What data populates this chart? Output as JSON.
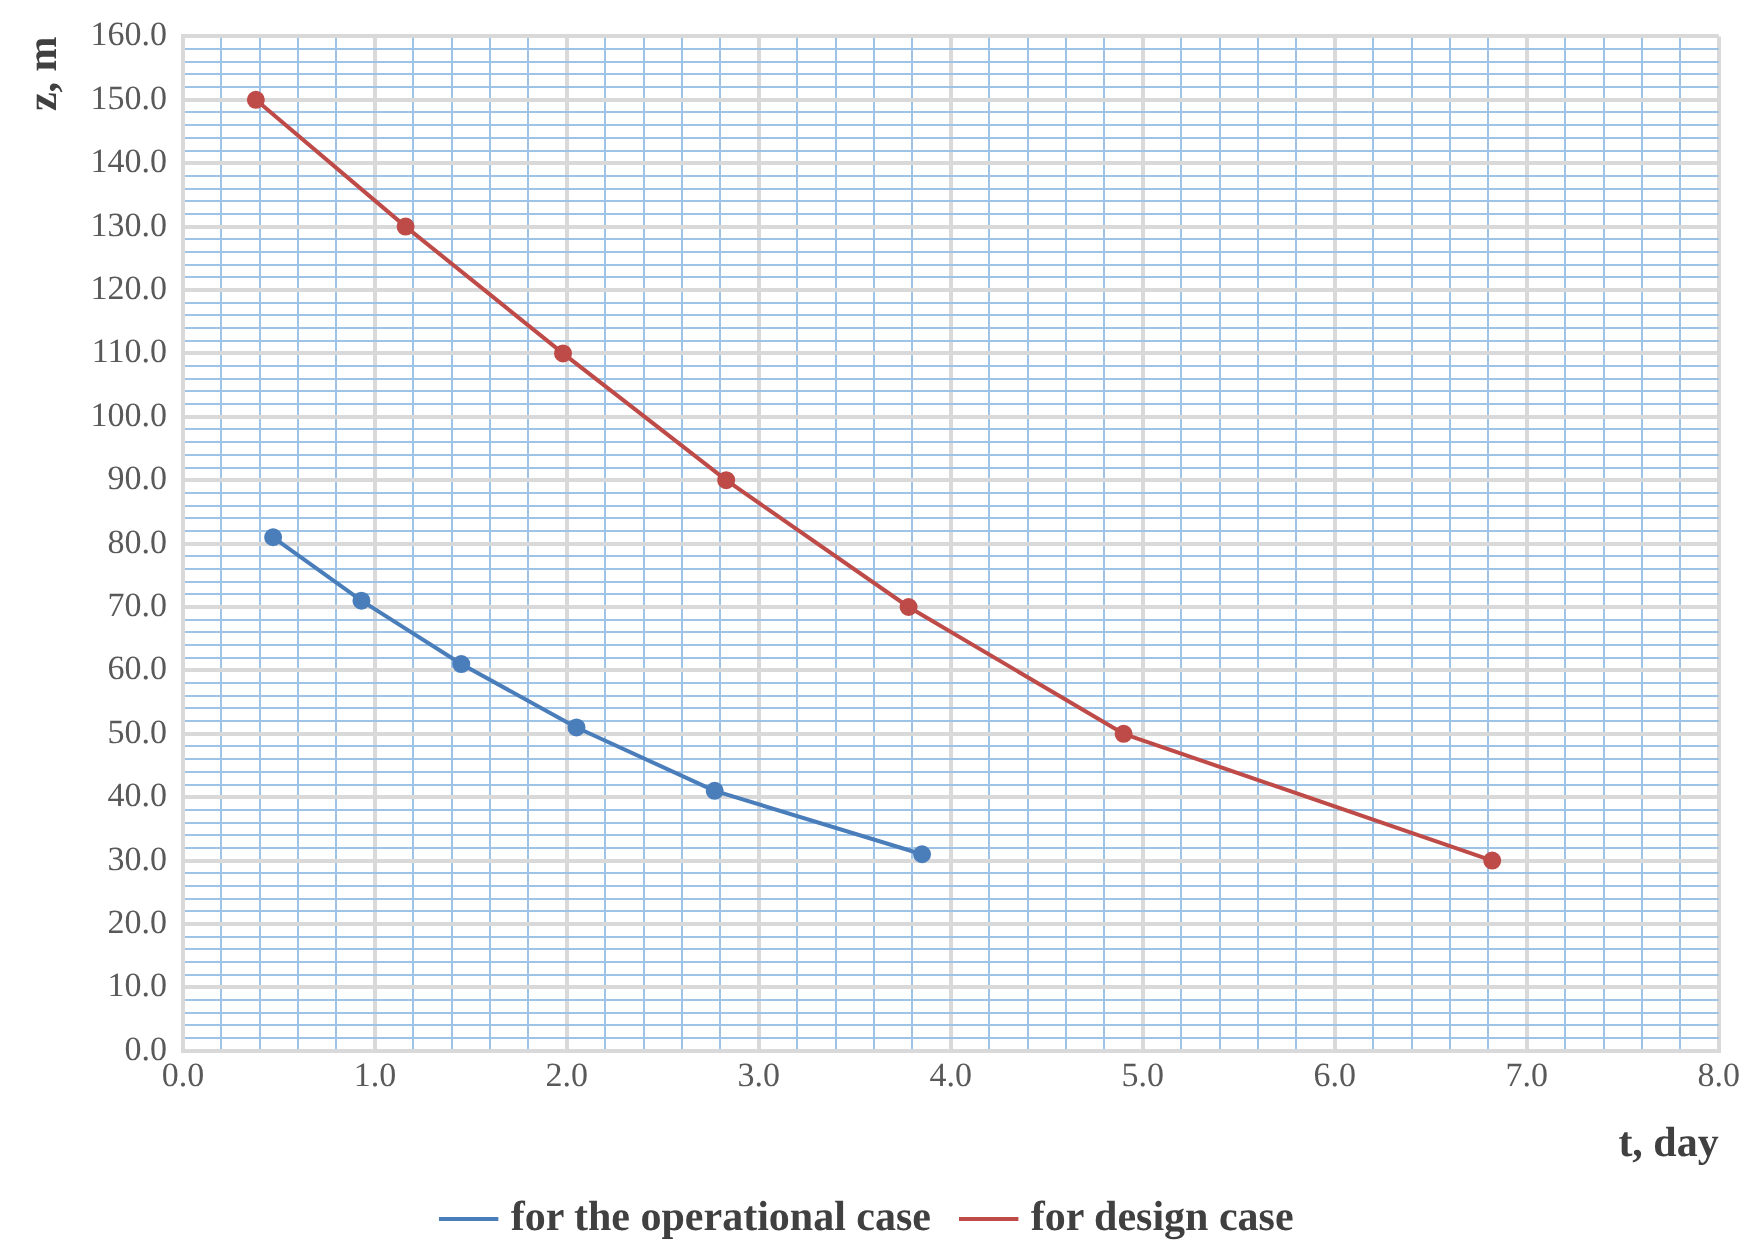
{
  "chart_data": {
    "type": "line",
    "xlabel": "t, day",
    "ylabel": "z, m",
    "xlim": [
      0,
      8
    ],
    "xticks": [
      {
        "value": 0,
        "label": "0.0"
      },
      {
        "value": 0.2,
        "label": null
      },
      {
        "value": 0.4,
        "label": null
      },
      {
        "value": 0.6,
        "label": null
      },
      {
        "value": 0.8,
        "label": null
      },
      {
        "value": 1,
        "label": "1.0"
      },
      {
        "value": 1.2,
        "label": null
      },
      {
        "value": 1.4,
        "label": null
      },
      {
        "value": 1.6,
        "label": null
      },
      {
        "value": 1.8,
        "label": null
      },
      {
        "value": 2,
        "label": "2.0"
      },
      {
        "value": 2.2,
        "label": null
      },
      {
        "value": 2.4,
        "label": null
      },
      {
        "value": 2.6,
        "label": null
      },
      {
        "value": 2.8,
        "label": null
      },
      {
        "value": 3,
        "label": "3.0"
      },
      {
        "value": 3.2,
        "label": null
      },
      {
        "value": 3.4,
        "label": null
      },
      {
        "value": 3.6,
        "label": null
      },
      {
        "value": 3.8,
        "label": null
      },
      {
        "value": 4,
        "label": "4.0"
      },
      {
        "value": 4.2,
        "label": null
      },
      {
        "value": 4.4,
        "label": null
      },
      {
        "value": 4.6,
        "label": null
      },
      {
        "value": 4.8,
        "label": null
      },
      {
        "value": 5,
        "label": "5.0"
      },
      {
        "value": 5.2,
        "label": null
      },
      {
        "value": 5.4,
        "label": null
      },
      {
        "value": 5.6,
        "label": null
      },
      {
        "value": 5.8,
        "label": null
      },
      {
        "value": 6,
        "label": "6.0"
      },
      {
        "value": 6.2,
        "label": null
      },
      {
        "value": 6.4,
        "label": null
      },
      {
        "value": 6.6,
        "label": null
      },
      {
        "value": 6.8,
        "label": null
      },
      {
        "value": 7,
        "label": "7.0"
      },
      {
        "value": 7.2,
        "label": null
      },
      {
        "value": 7.4,
        "label": null
      },
      {
        "value": 7.6,
        "label": null
      },
      {
        "value": 7.8,
        "label": null
      },
      {
        "value": 8,
        "label": "8.0"
      }
    ],
    "ylim": [
      0,
      160
    ],
    "yticks": [
      {
        "value": 0,
        "label": "0.0"
      },
      {
        "value": 2,
        "label": null
      },
      {
        "value": 4,
        "label": null
      },
      {
        "value": 6,
        "label": null
      },
      {
        "value": 8,
        "label": null
      },
      {
        "value": 10,
        "label": "10.0"
      },
      {
        "value": 12,
        "label": null
      },
      {
        "value": 14,
        "label": null
      },
      {
        "value": 16,
        "label": null
      },
      {
        "value": 18,
        "label": null
      },
      {
        "value": 20,
        "label": "20.0"
      },
      {
        "value": 22,
        "label": null
      },
      {
        "value": 24,
        "label": null
      },
      {
        "value": 26,
        "label": null
      },
      {
        "value": 28,
        "label": null
      },
      {
        "value": 30,
        "label": "30.0"
      },
      {
        "value": 32,
        "label": null
      },
      {
        "value": 34,
        "label": null
      },
      {
        "value": 36,
        "label": null
      },
      {
        "value": 38,
        "label": null
      },
      {
        "value": 40,
        "label": "40.0"
      },
      {
        "value": 42,
        "label": null
      },
      {
        "value": 44,
        "label": null
      },
      {
        "value": 46,
        "label": null
      },
      {
        "value": 48,
        "label": null
      },
      {
        "value": 50,
        "label": "50.0"
      },
      {
        "value": 52,
        "label": null
      },
      {
        "value": 54,
        "label": null
      },
      {
        "value": 56,
        "label": null
      },
      {
        "value": 58,
        "label": null
      },
      {
        "value": 60,
        "label": "60.0"
      },
      {
        "value": 62,
        "label": null
      },
      {
        "value": 64,
        "label": null
      },
      {
        "value": 66,
        "label": null
      },
      {
        "value": 68,
        "label": null
      },
      {
        "value": 70,
        "label": "70.0"
      },
      {
        "value": 72,
        "label": null
      },
      {
        "value": 74,
        "label": null
      },
      {
        "value": 76,
        "label": null
      },
      {
        "value": 78,
        "label": null
      },
      {
        "value": 80,
        "label": "80.0"
      },
      {
        "value": 82,
        "label": null
      },
      {
        "value": 84,
        "label": null
      },
      {
        "value": 86,
        "label": null
      },
      {
        "value": 88,
        "label": null
      },
      {
        "value": 90,
        "label": "90.0"
      },
      {
        "value": 92,
        "label": null
      },
      {
        "value": 94,
        "label": null
      },
      {
        "value": 96,
        "label": null
      },
      {
        "value": 98,
        "label": null
      },
      {
        "value": 100,
        "label": "100.0"
      },
      {
        "value": 102,
        "label": null
      },
      {
        "value": 104,
        "label": null
      },
      {
        "value": 106,
        "label": null
      },
      {
        "value": 108,
        "label": null
      },
      {
        "value": 110,
        "label": "110.0"
      },
      {
        "value": 112,
        "label": null
      },
      {
        "value": 114,
        "label": null
      },
      {
        "value": 116,
        "label": null
      },
      {
        "value": 118,
        "label": null
      },
      {
        "value": 120,
        "label": "120.0"
      },
      {
        "value": 122,
        "label": null
      },
      {
        "value": 124,
        "label": null
      },
      {
        "value": 126,
        "label": null
      },
      {
        "value": 128,
        "label": null
      },
      {
        "value": 130,
        "label": "130.0"
      },
      {
        "value": 132,
        "label": null
      },
      {
        "value": 134,
        "label": null
      },
      {
        "value": 136,
        "label": null
      },
      {
        "value": 138,
        "label": null
      },
      {
        "value": 140,
        "label": "140.0"
      },
      {
        "value": 142,
        "label": null
      },
      {
        "value": 144,
        "label": null
      },
      {
        "value": 146,
        "label": null
      },
      {
        "value": 148,
        "label": null
      },
      {
        "value": 150,
        "label": "150.0"
      },
      {
        "value": 152,
        "label": null
      },
      {
        "value": 154,
        "label": null
      },
      {
        "value": 156,
        "label": null
      },
      {
        "value": 158,
        "label": null
      },
      {
        "value": 160,
        "label": "160.0"
      }
    ],
    "series": [
      {
        "name": "for the operational case",
        "color": "#4a7ebb",
        "x": [
          0.47,
          0.93,
          1.45,
          2.05,
          2.77,
          3.85
        ],
        "values": [
          81,
          71,
          61,
          51,
          41,
          31
        ]
      },
      {
        "name": "for design case",
        "color": "#be4b48",
        "x": [
          0.38,
          1.16,
          1.98,
          2.83,
          3.78,
          4.9,
          6.82
        ],
        "values": [
          150,
          130,
          110,
          90,
          70,
          50,
          30
        ]
      }
    ],
    "grid": true,
    "legend": "bottom",
    "marker": "circle",
    "line_style": "solid"
  }
}
